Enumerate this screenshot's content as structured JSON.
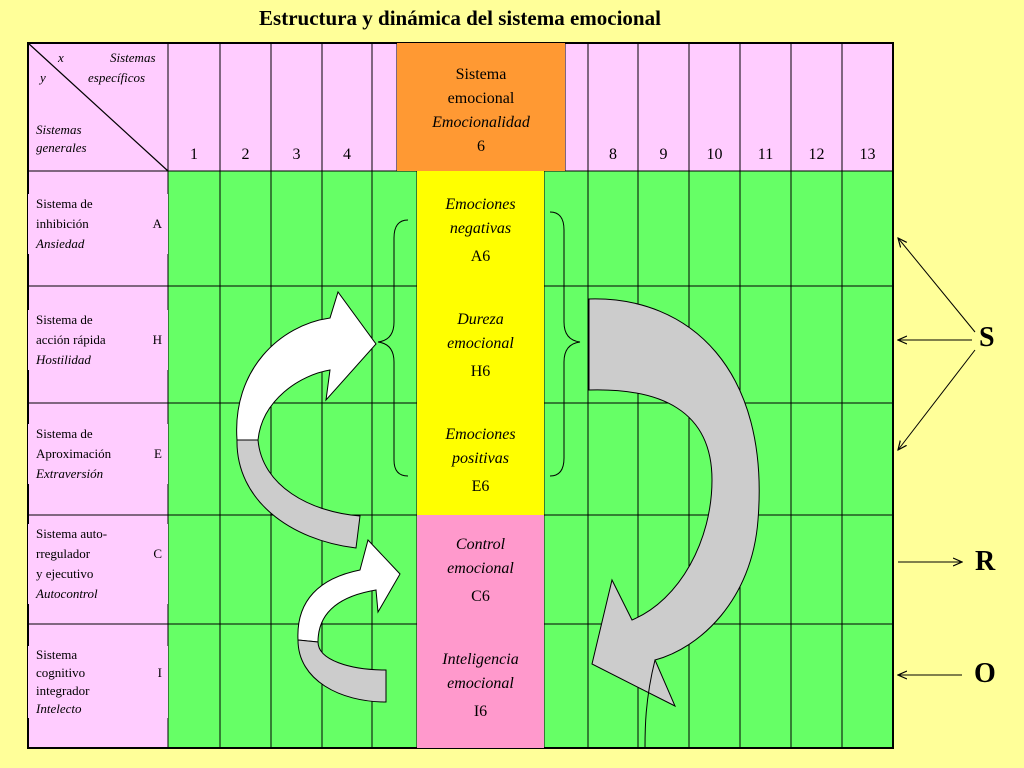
{
  "title": "Estructura y dinámica del sistema emocional",
  "corner": {
    "top_x": "x",
    "top_sistemas": "Sistemas",
    "top_y": "y",
    "top_especificos": "específicos",
    "bottom_l1": "Sistemas",
    "bottom_l2": "generales"
  },
  "column_numbers": [
    "1",
    "2",
    "3",
    "4",
    "8",
    "9",
    "10",
    "11",
    "12",
    "13"
  ],
  "system_header": {
    "line1": "Sistema",
    "line2": "emocional",
    "line3": "Emocionalidad",
    "number": "6"
  },
  "rows": [
    {
      "l1a": "Sistema de",
      "l2a": "inhibición",
      "l2b": "A",
      "l3": "Ansiedad"
    },
    {
      "l1a": "Sistema de",
      "l2a": "acción rápida",
      "l2b": "H",
      "l3": "Hostilidad"
    },
    {
      "l1a": "Sistema de",
      "l2a": "Aproximación",
      "l2b": "E",
      "l3": "Extraversión"
    },
    {
      "l1a": "Sistema auto-",
      "l2a": "rregulador",
      "l2b": "C",
      "l3a": "y ejecutivo",
      "l3": "Autocontrol"
    },
    {
      "l1a": "Sistema",
      "l2a": "cognitivo",
      "l2b": "I",
      "l3a": "integrador",
      "l3": "Intelecto"
    }
  ],
  "center_cells": [
    {
      "l1": "Emociones",
      "l2": "negativas",
      "code": "A6",
      "color": "#ffff00"
    },
    {
      "l1": "Dureza",
      "l2": "emocional",
      "code": "H6",
      "color": "#ffff00"
    },
    {
      "l1": "Emociones",
      "l2": "positivas",
      "code": "E6",
      "color": "#ffff00"
    },
    {
      "l1": "Control",
      "l2": "emocional",
      "code": "C6",
      "color": "#ff99cc"
    },
    {
      "l1": "Inteligencia",
      "l2": "emocional",
      "code": "I6",
      "color": "#ff99cc"
    }
  ],
  "side_letters": {
    "s": "S",
    "r": "R",
    "o": "O"
  },
  "colors": {
    "background": "#ffff99",
    "header_pink": "#ffccff",
    "grid_green": "#66ff66",
    "orange": "#ff9933",
    "yellow": "#ffff00",
    "pink": "#ff99cc"
  }
}
